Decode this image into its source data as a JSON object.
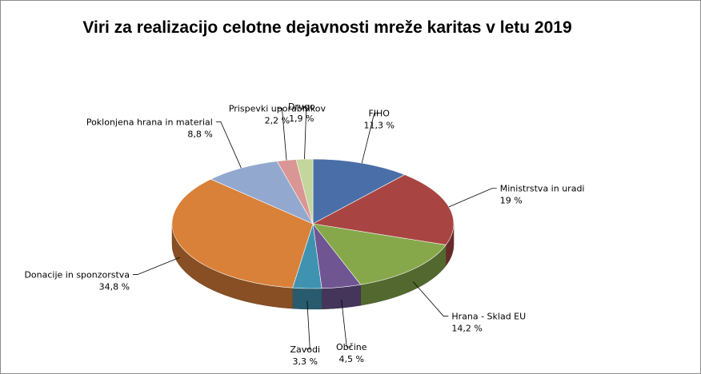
{
  "chart_data": {
    "type": "pie",
    "style": "3d",
    "title": "Viri za realizacijo celotne dejavnosti mreže karitas v letu 2019",
    "slices": [
      {
        "label": "FIHO",
        "value": 11.3,
        "value_label": "11,3 %",
        "color": "#4a6fa8"
      },
      {
        "label": "Ministrstva in uradi",
        "value": 19,
        "value_label": "19 %",
        "color": "#a84542"
      },
      {
        "label": "Hrana - Sklad EU",
        "value": 14.2,
        "value_label": "14,2 %",
        "color": "#86a84a"
      },
      {
        "label": "Občine",
        "value": 4.5,
        "value_label": "4,5 %",
        "color": "#6f5592"
      },
      {
        "label": "Zavodi",
        "value": 3.3,
        "value_label": "3,3 %",
        "color": "#3f93b0"
      },
      {
        "label": "Donacije in sponzorstva",
        "value": 34.8,
        "value_label": "34,8 %",
        "color": "#d98039"
      },
      {
        "label": "Poklonjena hrana in material",
        "value": 8.8,
        "value_label": "8,8  %",
        "color": "#92a8ce"
      },
      {
        "label": "Prispevki uporabnikov",
        "value": 2.2,
        "value_label": "2,2 %",
        "color": "#d99694"
      },
      {
        "label": "Drugo",
        "value": 1.9,
        "value_label": "1,9 %",
        "color": "#c3d69b"
      }
    ]
  }
}
